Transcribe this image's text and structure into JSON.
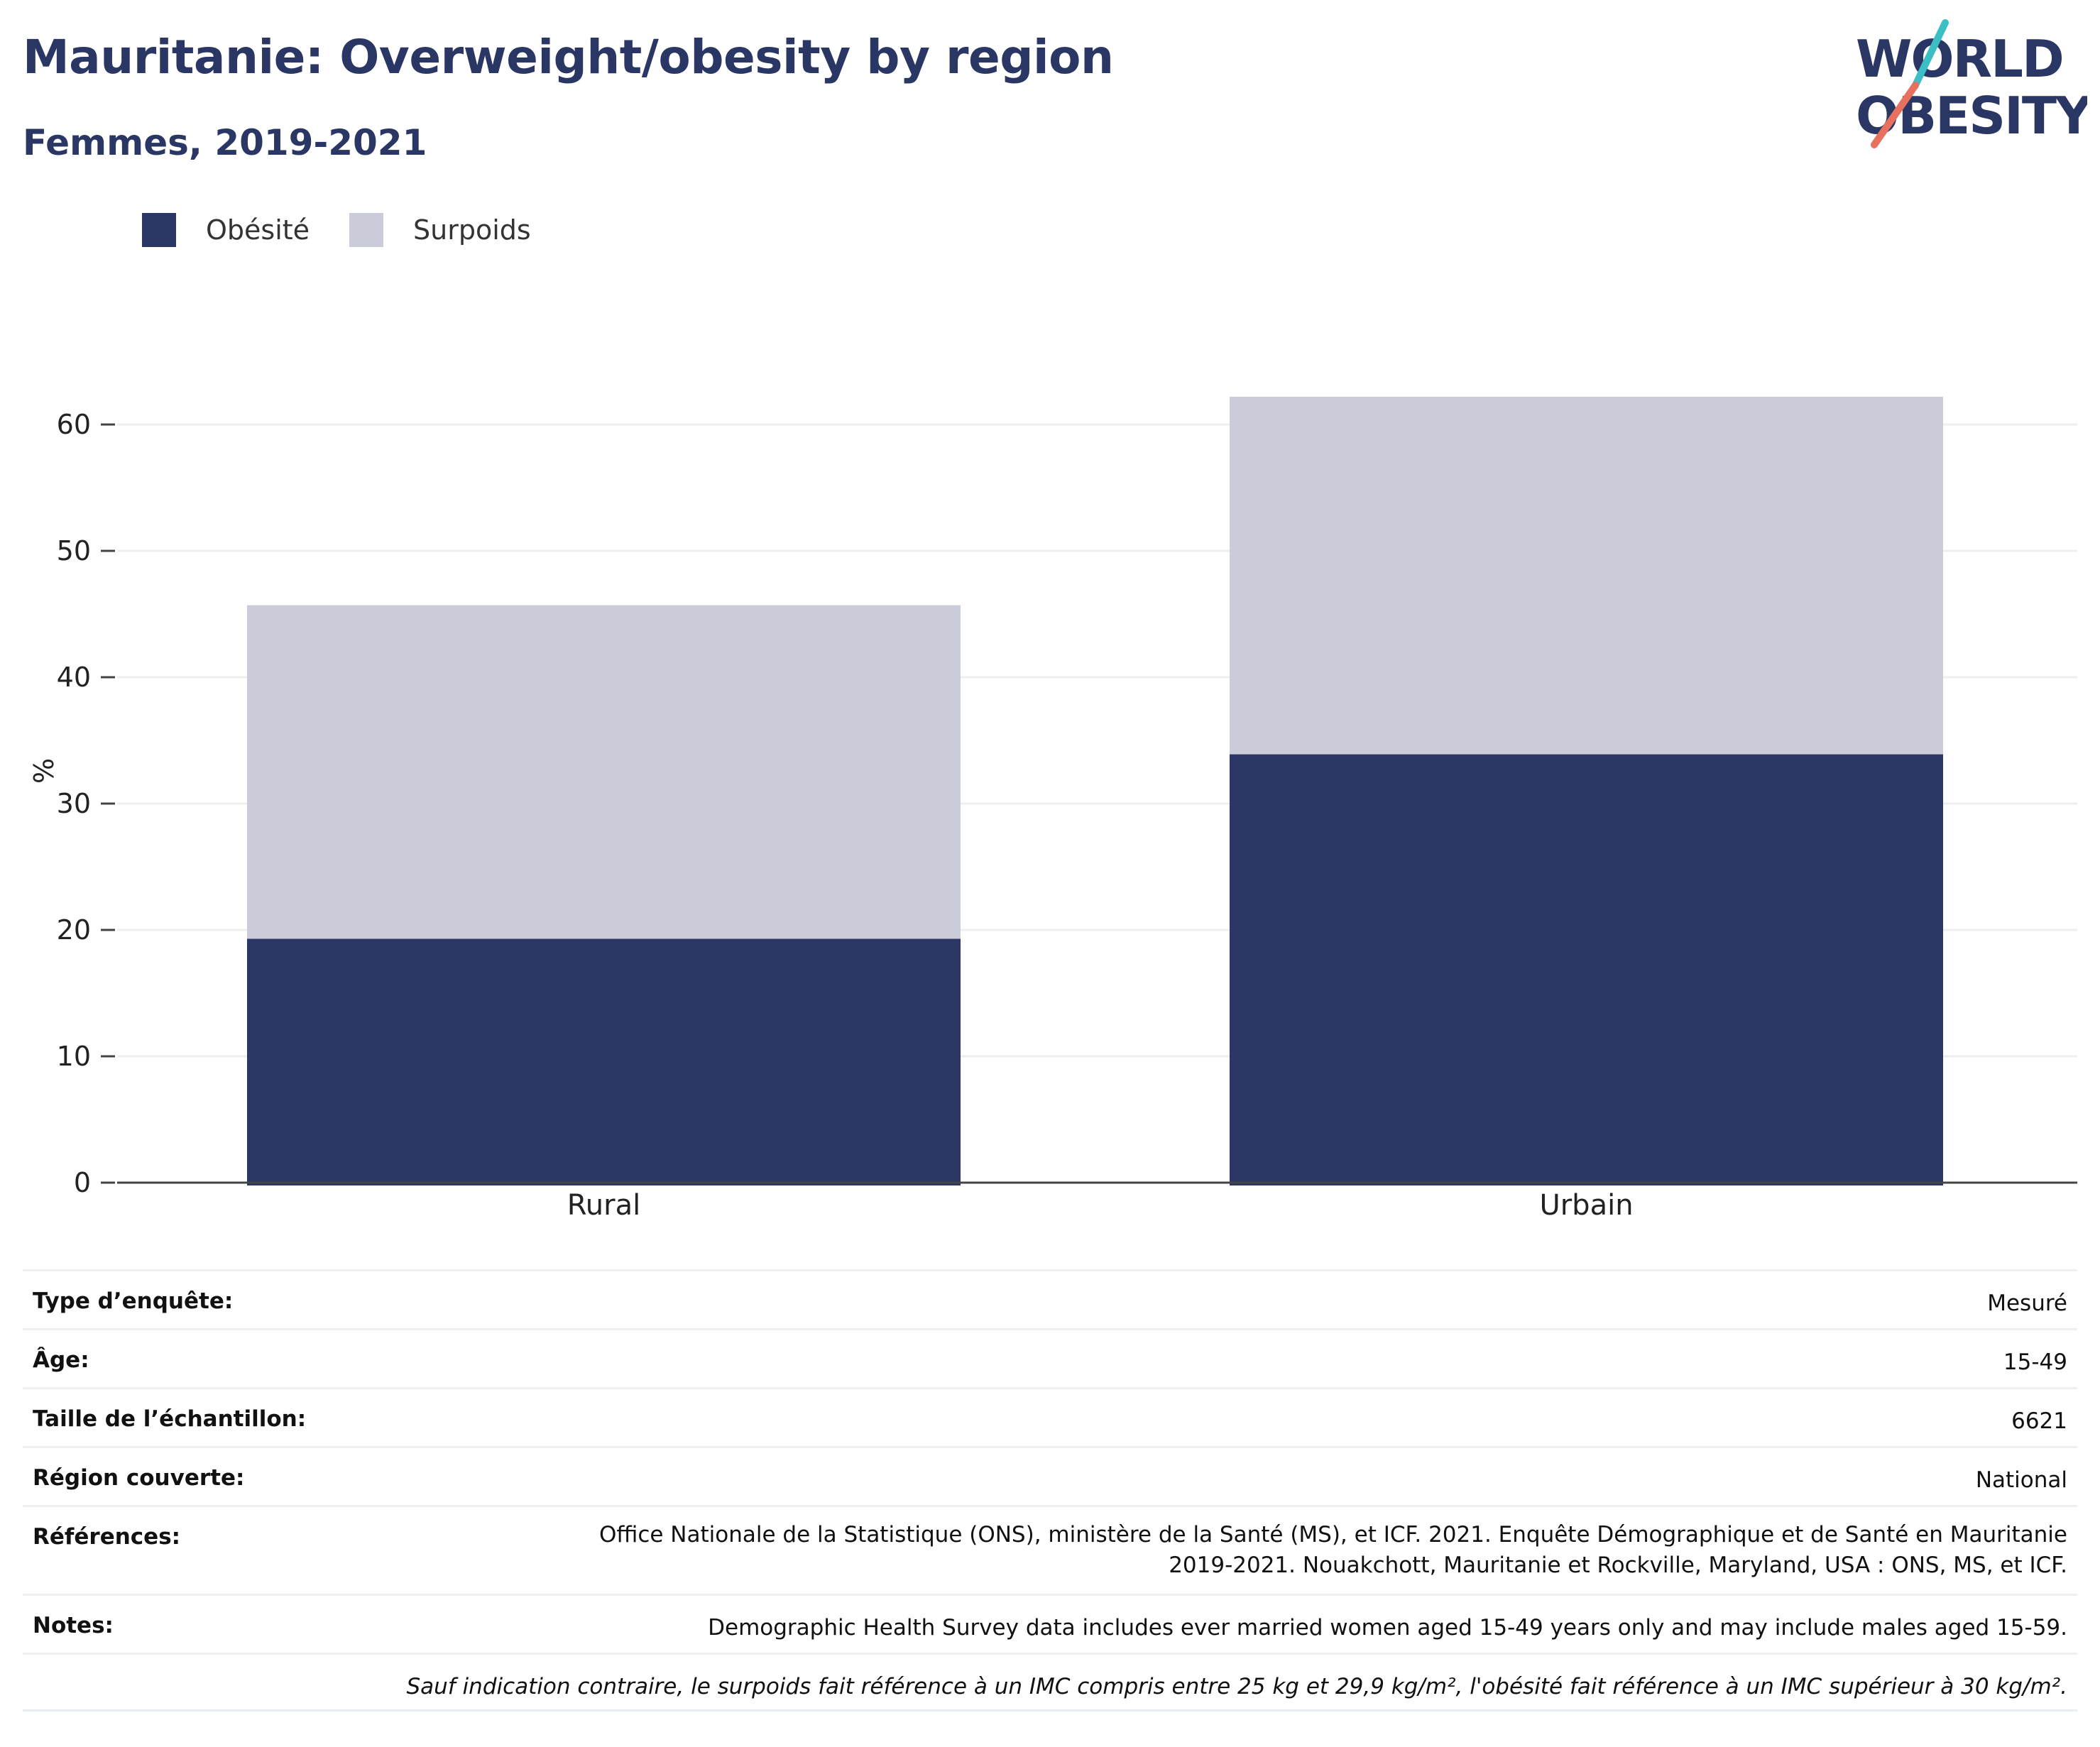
{
  "title": "Mauritanie: Overweight/obesity by region",
  "subtitle": "Femmes, 2019-2021",
  "logo": {
    "line1": "WORLD",
    "line2": "OBESITY",
    "colors": {
      "text": "#2a3663",
      "slash_teal": "#3bbfc4",
      "slash_coral": "#e8705e"
    }
  },
  "colors": {
    "obesite": "#2a3663",
    "surpoids": "#cacdd9",
    "axis": "#444444",
    "grid": "#eeeeee"
  },
  "chart_data": {
    "type": "bar",
    "stacked": true,
    "categories": [
      "Rural",
      "Urbain"
    ],
    "series": [
      {
        "name": "Obésité",
        "values": [
          19.3,
          33.9
        ]
      },
      {
        "name": "Surpoids",
        "values": [
          26.4,
          28.3
        ]
      }
    ],
    "ylabel": "%",
    "ylim": [
      0,
      65
    ],
    "yticks": [
      "0",
      "10",
      "20",
      "30",
      "40",
      "50",
      "60"
    ],
    "grid": true,
    "legend_position": "top-left"
  },
  "meta": {
    "rows": [
      {
        "key": "Type d’enquête:",
        "value": "Mesuré"
      },
      {
        "key": "Âge:",
        "value": "15-49"
      },
      {
        "key": "Taille de l’échantillon:",
        "value": "6621"
      },
      {
        "key": "Région couverte:",
        "value": "National"
      },
      {
        "key": "Références:",
        "value": "Office Nationale de la Statistique (ONS), ministère de la Santé (MS), et ICF. 2021. Enquête Démographique et de Santé en Mauritanie",
        "value2": "2019-2021. Nouakchott, Mauritanie et Rockville, Maryland, USA : ONS, MS, et ICF."
      },
      {
        "key": "Notes:",
        "value": "Demographic Health Survey data includes ever married women aged 15-49 years only and may include males aged 15-59."
      }
    ],
    "footnote": "Sauf indication contraire, le surpoids fait référence à un IMC compris entre 25 kg et 29,9 kg/m², l'obésité fait référence à un IMC supérieur à 30 kg/m²."
  }
}
